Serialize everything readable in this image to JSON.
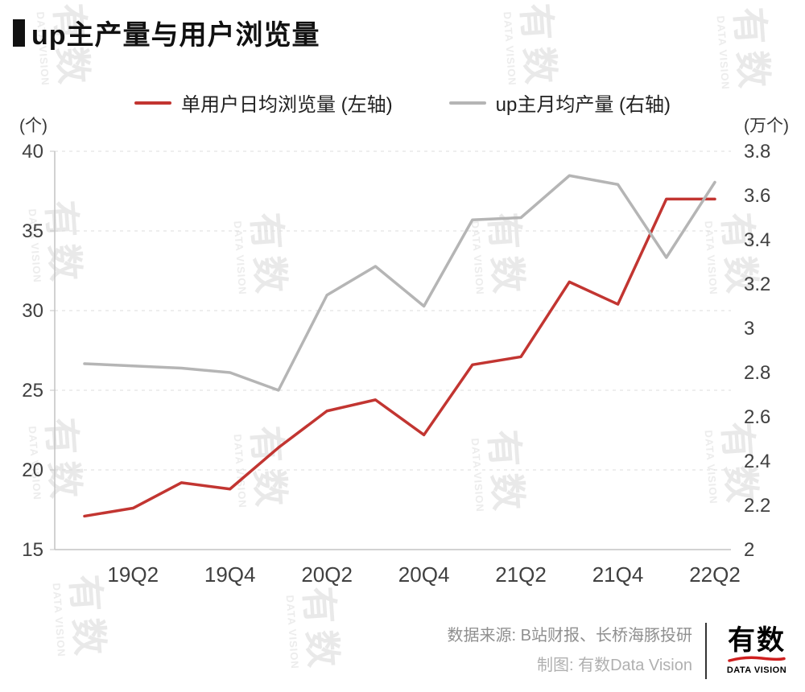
{
  "title": {
    "text": "up主产量与用户浏览量"
  },
  "legend": [
    {
      "label": "单用户日均浏览量 (左轴)"
    },
    {
      "label": "up主月均产量 (右轴)"
    }
  ],
  "axis_units": {
    "left": "(个)",
    "right": "(万个)"
  },
  "watermark": {
    "text": "有数",
    "sub": "DATA VISION"
  },
  "footer": {
    "source": "数据来源: B站财报、长桥海豚投研",
    "credit": "制图: 有数Data Vision",
    "logo": {
      "name": "有数",
      "sub": "DATA VISION"
    }
  },
  "chart_data": {
    "type": "line",
    "title": "up主产量与用户浏览量",
    "x": [
      "19Q1",
      "19Q2",
      "19Q3",
      "19Q4",
      "20Q1",
      "20Q2",
      "20Q3",
      "20Q4",
      "21Q1",
      "21Q2",
      "21Q3",
      "21Q4",
      "22Q1",
      "22Q2"
    ],
    "x_tick_labels": [
      "19Q2",
      "19Q4",
      "20Q2",
      "20Q4",
      "21Q2",
      "21Q4",
      "22Q2"
    ],
    "series": [
      {
        "name": "单用户日均浏览量 (左轴)",
        "axis": "left",
        "color": "#c23531",
        "values": [
          17.1,
          17.6,
          19.2,
          18.8,
          21.4,
          23.7,
          24.4,
          22.2,
          26.6,
          27.1,
          31.8,
          30.4,
          37.0,
          37.0
        ]
      },
      {
        "name": "up主月均产量 (右轴)",
        "axis": "right",
        "color": "#b5b5b5",
        "values": [
          2.84,
          2.83,
          2.82,
          2.8,
          2.72,
          3.15,
          3.28,
          3.1,
          3.49,
          3.5,
          3.69,
          3.65,
          3.32,
          3.66
        ]
      }
    ],
    "left_axis": {
      "label": "(个)",
      "min": 15,
      "max": 40,
      "ticks": [
        15,
        20,
        25,
        30,
        35,
        40
      ]
    },
    "right_axis": {
      "label": "(万个)",
      "min": 2,
      "max": 3.8,
      "ticks": [
        2,
        2.2,
        2.4,
        2.6,
        2.8,
        3,
        3.2,
        3.4,
        3.6,
        3.8
      ]
    },
    "grid": "horizontal-dashed",
    "legend_position": "top-center"
  }
}
